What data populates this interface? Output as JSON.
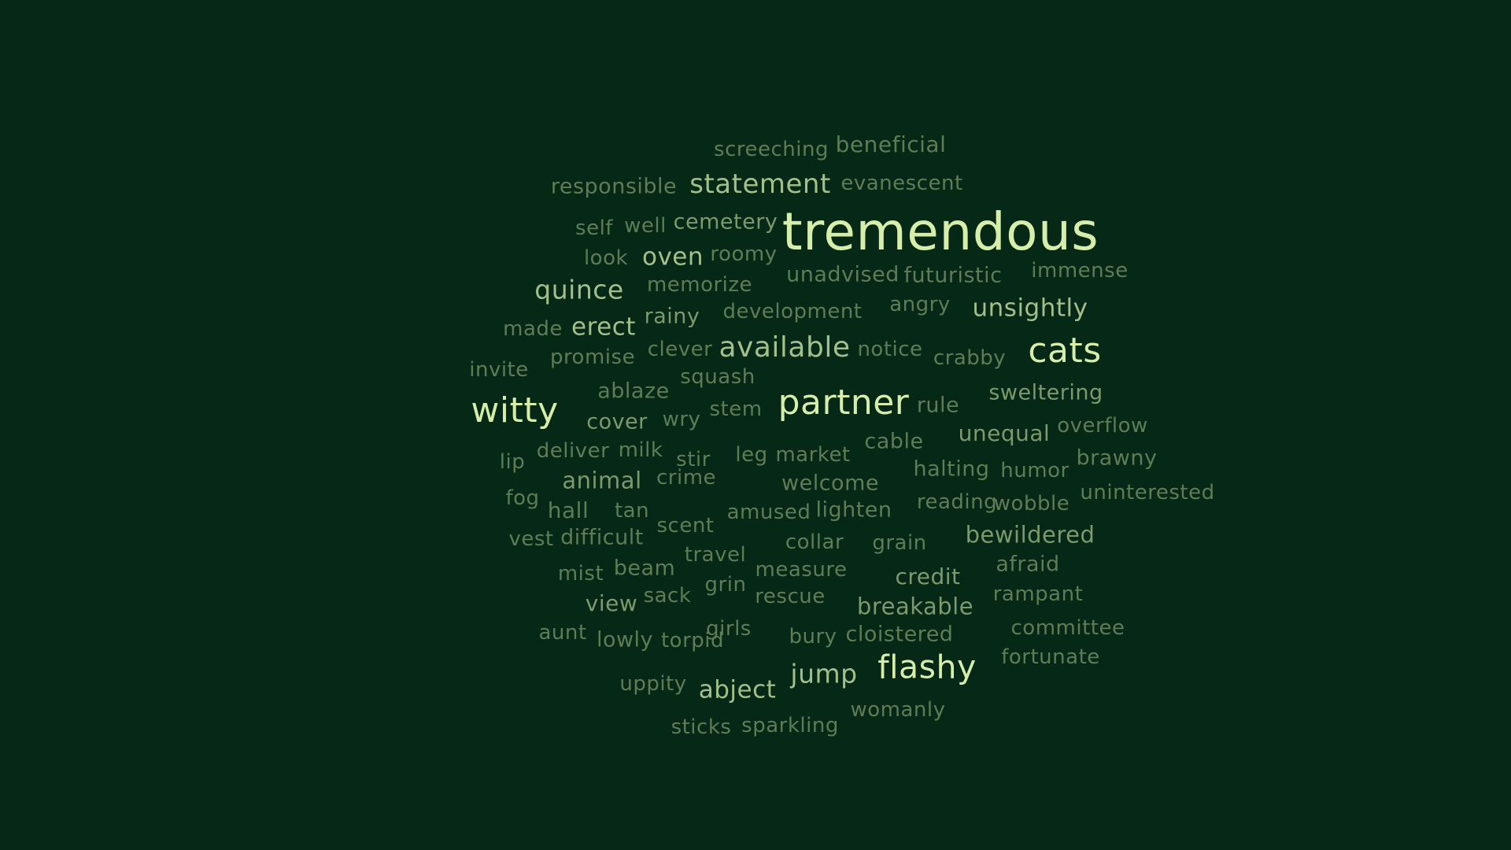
{
  "colors": {
    "background": "#062817",
    "tiers": [
      "#5f7d55",
      "#7c9a6b",
      "#a3c08a",
      "#d6eea9"
    ]
  },
  "words": [
    {
      "text": "screeching",
      "tier": 0
    },
    {
      "text": "beneficial",
      "tier": 0
    },
    {
      "text": "responsible",
      "tier": 0
    },
    {
      "text": "statement",
      "tier": 2
    },
    {
      "text": "evanescent",
      "tier": 0
    },
    {
      "text": "self",
      "tier": 0
    },
    {
      "text": "well",
      "tier": 0
    },
    {
      "text": "cemetery",
      "tier": 1
    },
    {
      "text": "tremendous",
      "tier": 3
    },
    {
      "text": "look",
      "tier": 0
    },
    {
      "text": "oven",
      "tier": 2
    },
    {
      "text": "roomy",
      "tier": 0
    },
    {
      "text": "unadvised",
      "tier": 0
    },
    {
      "text": "futuristic",
      "tier": 0
    },
    {
      "text": "immense",
      "tier": 0
    },
    {
      "text": "quince",
      "tier": 2
    },
    {
      "text": "memorize",
      "tier": 0
    },
    {
      "text": "made",
      "tier": 0
    },
    {
      "text": "erect",
      "tier": 2
    },
    {
      "text": "rainy",
      "tier": 1
    },
    {
      "text": "development",
      "tier": 0
    },
    {
      "text": "angry",
      "tier": 0
    },
    {
      "text": "unsightly",
      "tier": 2
    },
    {
      "text": "invite",
      "tier": 0
    },
    {
      "text": "promise",
      "tier": 0
    },
    {
      "text": "clever",
      "tier": 0
    },
    {
      "text": "available",
      "tier": 2
    },
    {
      "text": "notice",
      "tier": 0
    },
    {
      "text": "crabby",
      "tier": 0
    },
    {
      "text": "cats",
      "tier": 3
    },
    {
      "text": "squash",
      "tier": 0
    },
    {
      "text": "witty",
      "tier": 3
    },
    {
      "text": "ablaze",
      "tier": 0
    },
    {
      "text": "partner",
      "tier": 3
    },
    {
      "text": "rule",
      "tier": 0
    },
    {
      "text": "sweltering",
      "tier": 1
    },
    {
      "text": "cover",
      "tier": 1
    },
    {
      "text": "wry",
      "tier": 0
    },
    {
      "text": "stem",
      "tier": 0
    },
    {
      "text": "unequal",
      "tier": 1
    },
    {
      "text": "overflow",
      "tier": 0
    },
    {
      "text": "lip",
      "tier": 0
    },
    {
      "text": "deliver",
      "tier": 0
    },
    {
      "text": "milk",
      "tier": 0
    },
    {
      "text": "stir",
      "tier": 0
    },
    {
      "text": "leg",
      "tier": 0
    },
    {
      "text": "market",
      "tier": 0
    },
    {
      "text": "cable",
      "tier": 0
    },
    {
      "text": "brawny",
      "tier": 0
    },
    {
      "text": "animal",
      "tier": 1
    },
    {
      "text": "crime",
      "tier": 0
    },
    {
      "text": "welcome",
      "tier": 0
    },
    {
      "text": "halting",
      "tier": 0
    },
    {
      "text": "humor",
      "tier": 0
    },
    {
      "text": "fog",
      "tier": 0
    },
    {
      "text": "hall",
      "tier": 0
    },
    {
      "text": "tan",
      "tier": 0
    },
    {
      "text": "amused",
      "tier": 0
    },
    {
      "text": "lighten",
      "tier": 0
    },
    {
      "text": "reading",
      "tier": 0
    },
    {
      "text": "wobble",
      "tier": 0
    },
    {
      "text": "uninterested",
      "tier": 0
    },
    {
      "text": "vest",
      "tier": 0
    },
    {
      "text": "difficult",
      "tier": 0
    },
    {
      "text": "scent",
      "tier": 0
    },
    {
      "text": "collar",
      "tier": 0
    },
    {
      "text": "grain",
      "tier": 0
    },
    {
      "text": "bewildered",
      "tier": 1
    },
    {
      "text": "mist",
      "tier": 0
    },
    {
      "text": "beam",
      "tier": 0
    },
    {
      "text": "travel",
      "tier": 0
    },
    {
      "text": "measure",
      "tier": 0
    },
    {
      "text": "credit",
      "tier": 1
    },
    {
      "text": "afraid",
      "tier": 0
    },
    {
      "text": "grin",
      "tier": 0
    },
    {
      "text": "sack",
      "tier": 0
    },
    {
      "text": "rescue",
      "tier": 0
    },
    {
      "text": "rampant",
      "tier": 0
    },
    {
      "text": "view",
      "tier": 1
    },
    {
      "text": "breakable",
      "tier": 1
    },
    {
      "text": "aunt",
      "tier": 0
    },
    {
      "text": "lowly",
      "tier": 0
    },
    {
      "text": "torpid",
      "tier": 0
    },
    {
      "text": "girls",
      "tier": 0
    },
    {
      "text": "bury",
      "tier": 0
    },
    {
      "text": "cloistered",
      "tier": 0
    },
    {
      "text": "committee",
      "tier": 0
    },
    {
      "text": "fortunate",
      "tier": 0
    },
    {
      "text": "jump",
      "tier": 2
    },
    {
      "text": "flashy",
      "tier": 3
    },
    {
      "text": "uppity",
      "tier": 0
    },
    {
      "text": "abject",
      "tier": 2
    },
    {
      "text": "womanly",
      "tier": 0
    },
    {
      "text": "sticks",
      "tier": 0
    },
    {
      "text": "sparkling",
      "tier": 0
    }
  ]
}
